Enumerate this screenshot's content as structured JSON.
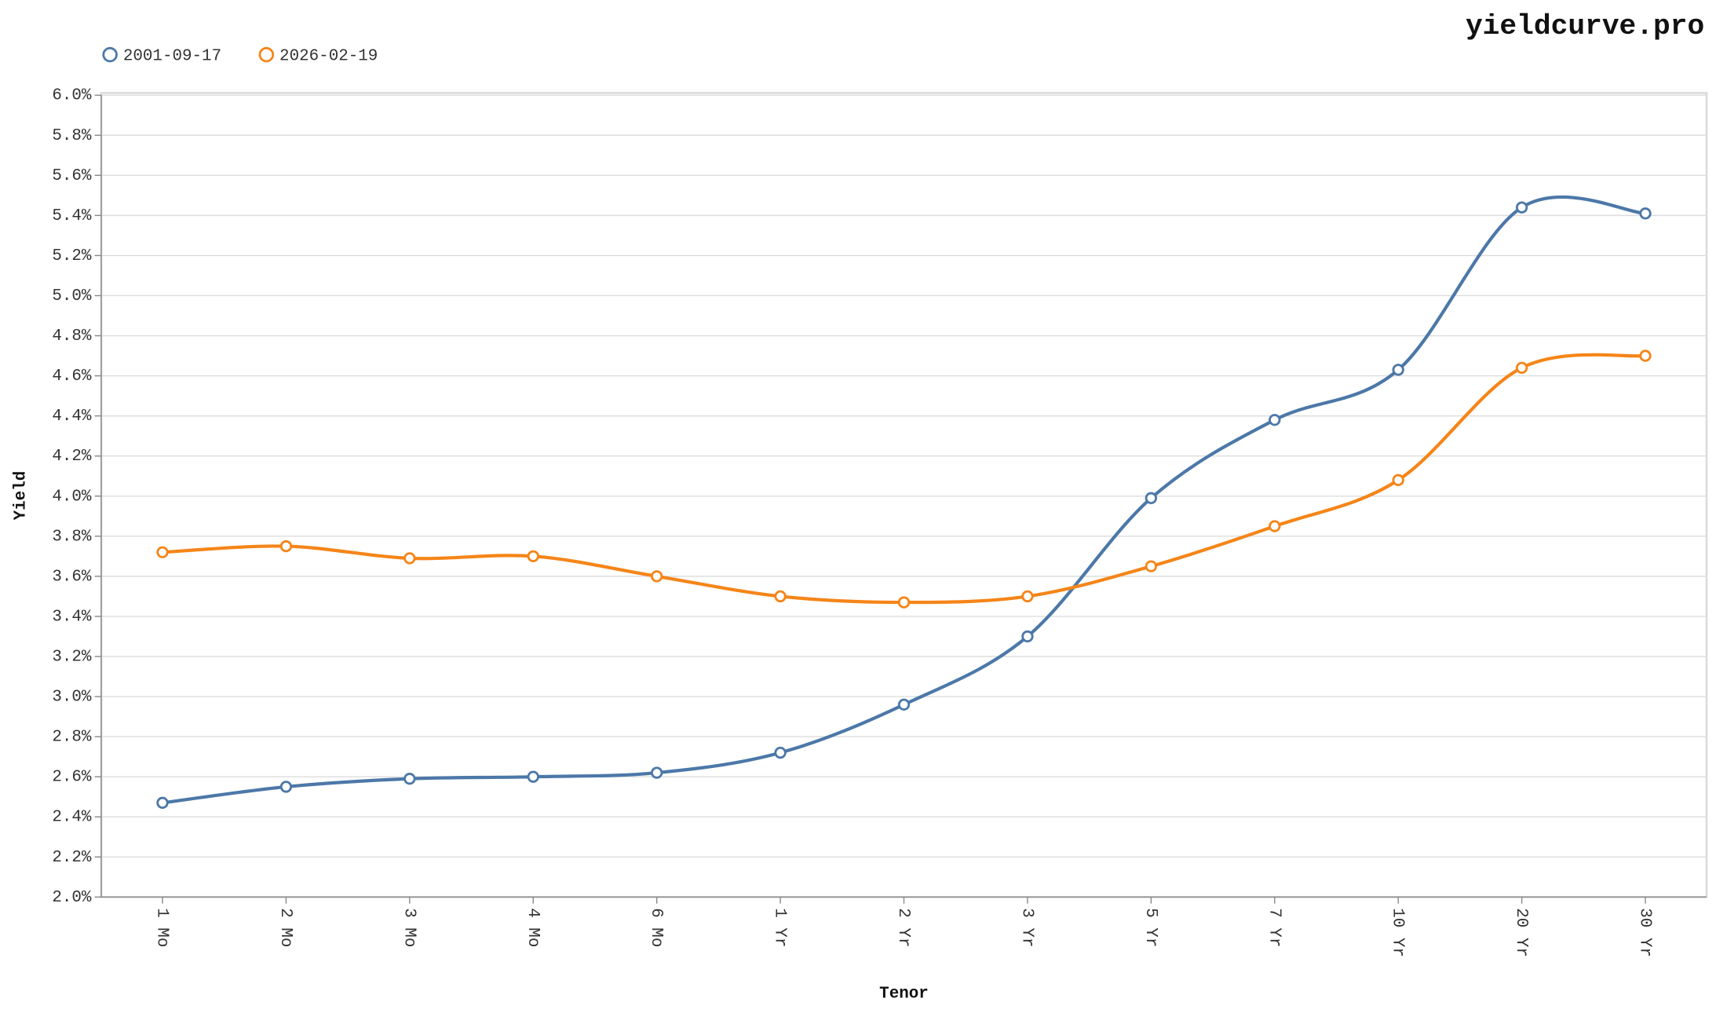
{
  "chart_data": {
    "type": "line",
    "watermark": "yieldcurve.pro",
    "x_label": "Tenor",
    "y_label": "Yield",
    "categories": [
      "1 Mo",
      "2 Mo",
      "3 Mo",
      "4 Mo",
      "6 Mo",
      "1 Yr",
      "2 Yr",
      "3 Yr",
      "5 Yr",
      "7 Yr",
      "10 Yr",
      "20 Yr",
      "30 Yr"
    ],
    "series": [
      {
        "name": "2001-09-17",
        "color": "#4c78a8",
        "values": [
          2.47,
          2.55,
          2.59,
          2.6,
          2.62,
          2.72,
          2.96,
          3.3,
          3.99,
          4.38,
          4.63,
          5.44,
          5.41
        ]
      },
      {
        "name": "2026-02-19",
        "color": "#f58518",
        "values": [
          3.72,
          3.75,
          3.69,
          3.7,
          3.6,
          3.5,
          3.47,
          3.5,
          3.65,
          3.85,
          4.08,
          4.64,
          4.7
        ]
      }
    ],
    "ylim": [
      2.0,
      6.0
    ],
    "yticks": [
      {
        "value": 2.0,
        "label": "2.0%"
      },
      {
        "value": 2.2,
        "label": "2.2%"
      },
      {
        "value": 2.4,
        "label": "2.4%"
      },
      {
        "value": 2.6,
        "label": "2.6%"
      },
      {
        "value": 2.8,
        "label": "2.8%"
      },
      {
        "value": 3.0,
        "label": "3.0%"
      },
      {
        "value": 3.2,
        "label": "3.2%"
      },
      {
        "value": 3.4,
        "label": "3.4%"
      },
      {
        "value": 3.6,
        "label": "3.6%"
      },
      {
        "value": 3.8,
        "label": "3.8%"
      },
      {
        "value": 4.0,
        "label": "4.0%"
      },
      {
        "value": 4.2,
        "label": "4.2%"
      },
      {
        "value": 4.4,
        "label": "4.4%"
      },
      {
        "value": 4.6,
        "label": "4.6%"
      },
      {
        "value": 4.8,
        "label": "4.8%"
      },
      {
        "value": 5.0,
        "label": "5.0%"
      },
      {
        "value": 5.2,
        "label": "5.2%"
      },
      {
        "value": 5.4,
        "label": "5.4%"
      },
      {
        "value": 5.6,
        "label": "5.6%"
      },
      {
        "value": 5.8,
        "label": "5.8%"
      },
      {
        "value": 6.0,
        "label": "6.0%"
      }
    ],
    "grid": true,
    "legend": "top-left"
  }
}
